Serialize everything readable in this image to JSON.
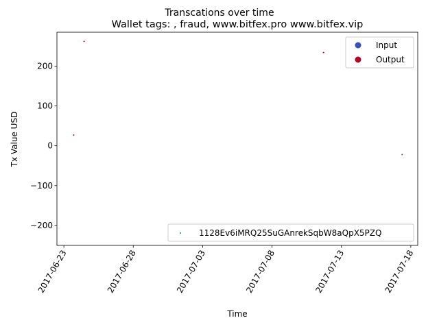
{
  "chart_data": {
    "type": "scatter",
    "title": "Transcations over time",
    "subtitle": "Wallet tags: , fraud, www.bitfex.pro www.bitfex.vip",
    "xlabel": "Time",
    "ylabel": "Tx Value USD",
    "x_range": [
      "2017-06-22T12:00",
      "2017-07-18T12:00"
    ],
    "ylim": [
      -250,
      285
    ],
    "x_ticks": [
      "2017-06-23",
      "2017-06-28",
      "2017-07-03",
      "2017-07-08",
      "2017-07-13",
      "2017-07-18"
    ],
    "y_ticks": [
      -200,
      -100,
      0,
      100,
      200
    ],
    "grid": false,
    "legends": [
      {
        "placement": "upper right",
        "entries": [
          {
            "label": "Input",
            "color": "#3b4cc0"
          },
          {
            "label": "Output",
            "color": "#b40426"
          }
        ]
      },
      {
        "placement": "lower right",
        "entries": [
          {
            "label": "1128Ev6iMRQ25SuGAnrekSqbW8aQpX5PZQ",
            "color": "#1f77b4"
          }
        ]
      }
    ],
    "series": [
      {
        "name": "1128Ev6iMRQ25SuGAnrekSqbW8aQpX5PZQ",
        "points": [
          {
            "x": "2017-06-23T17:00",
            "y": 27,
            "color": "#b40426"
          },
          {
            "x": "2017-06-24T11:00",
            "y": 262,
            "color": "#b40426"
          },
          {
            "x": "2017-07-11T17:00",
            "y": 234,
            "color": "#b40426"
          },
          {
            "x": "2017-07-17T09:00",
            "y": -22,
            "color": "#3b4cc0"
          }
        ]
      }
    ]
  }
}
